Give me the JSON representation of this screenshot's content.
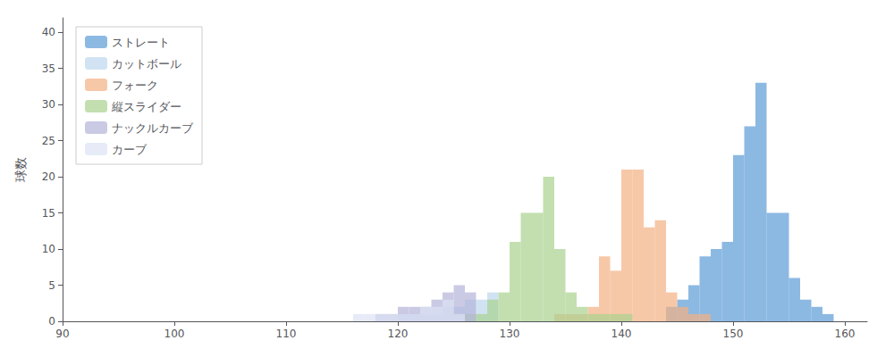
{
  "chart_data": {
    "type": "histogram",
    "ylabel": "球数",
    "xlim": [
      90,
      162
    ],
    "ylim": [
      0,
      42
    ],
    "xticks": [
      90,
      100,
      110,
      120,
      130,
      140,
      150,
      160
    ],
    "yticks": [
      0,
      5,
      10,
      15,
      20,
      25,
      30,
      35,
      40
    ],
    "grid": false,
    "legend": "upper left",
    "series": [
      {
        "name": "ストレート",
        "color": "#5b9bd5",
        "bins": [
          144,
          145,
          146,
          147,
          148,
          149,
          150,
          151,
          152,
          153,
          154,
          155,
          156,
          157,
          158,
          159
        ],
        "counts": [
          2,
          3,
          5,
          9,
          10,
          11,
          23,
          27,
          33,
          15,
          15,
          6,
          3,
          2,
          1
        ]
      },
      {
        "name": "カットボール",
        "color": "#bdd7ee",
        "bins": [
          120,
          121,
          122,
          123,
          124,
          125,
          126,
          127,
          128,
          129
        ],
        "counts": [
          1,
          1,
          1,
          1,
          2,
          2,
          3,
          3,
          4
        ]
      },
      {
        "name": "フォーク",
        "color": "#f4b183",
        "bins": [
          134,
          135,
          136,
          137,
          138,
          139,
          140,
          141,
          142,
          143,
          144,
          145,
          146,
          147,
          148
        ],
        "counts": [
          1,
          1,
          1,
          2,
          9,
          7,
          21,
          21,
          13,
          14,
          4,
          2,
          1,
          1
        ]
      },
      {
        "name": "縦スライダー",
        "color": "#a9d18e",
        "bins": [
          126,
          127,
          128,
          129,
          130,
          131,
          132,
          133,
          134,
          135,
          136,
          137,
          138,
          139,
          140,
          141
        ],
        "counts": [
          1,
          1,
          3,
          4,
          11,
          15,
          15,
          20,
          10,
          4,
          2,
          1,
          1,
          1,
          1
        ]
      },
      {
        "name": "ナックルカーブ",
        "color": "#b4b4d8",
        "bins": [
          118,
          119,
          120,
          121,
          122,
          123,
          124,
          125,
          126,
          127
        ],
        "counts": [
          1,
          1,
          2,
          2,
          2,
          3,
          4,
          5,
          4
        ]
      },
      {
        "name": "カーブ",
        "color": "#dce3f3",
        "bins": [
          116,
          117,
          118,
          119,
          120,
          121,
          122,
          123,
          124,
          125,
          126
        ],
        "counts": [
          1,
          1,
          1,
          1,
          1,
          1,
          2,
          2,
          3,
          1
        ]
      }
    ]
  }
}
